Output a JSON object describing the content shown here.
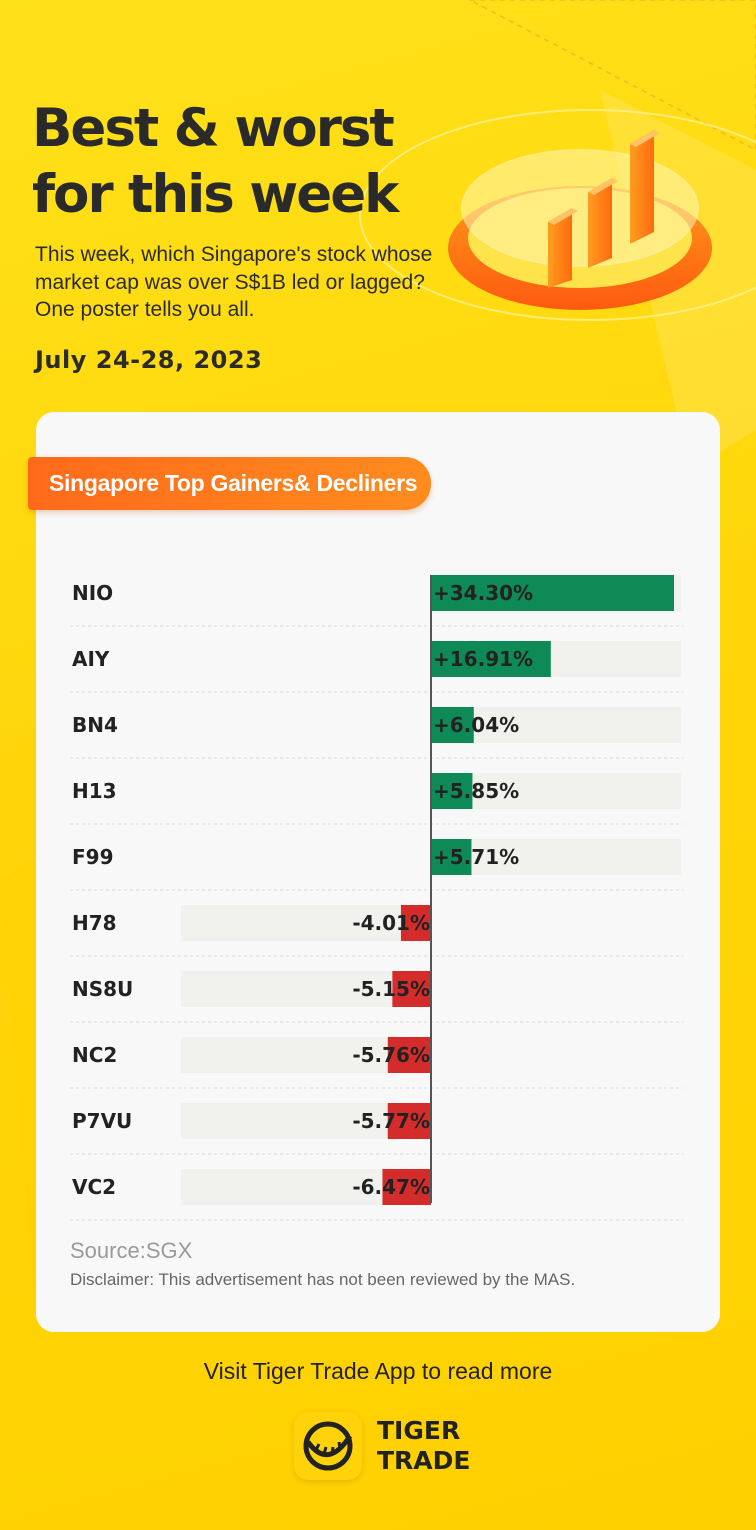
{
  "header": {
    "title_line1": "Best & worst",
    "title_line2": "for this week",
    "intro": "This week, which Singapore's stock whose market cap was over S$1B led or lagged? One poster tells you all.",
    "date": "July 24-28, 2023"
  },
  "card": {
    "pill_label": "Singapore Top Gainers& Decliners",
    "source": "Source:SGX",
    "disclaimer": "Disclaimer: This advertisement has not been reviewed by the MAS."
  },
  "footer": {
    "cta": "Visit Tiger Trade App to read more",
    "brand_line1": "TIGER",
    "brand_line2": "TRADE",
    "logo_icon": "tiger-logo-icon"
  },
  "colors": {
    "gain": "#0e8a57",
    "loss": "#d42b2b",
    "track": "#f1f1ee",
    "accent": "#ff7a1a",
    "background": "#ffd90f"
  },
  "chart_data": {
    "type": "bar",
    "orientation": "horizontal-diverging",
    "title": "Singapore Top Gainers& Decliners",
    "categories": [
      "NIO",
      "AIY",
      "BN4",
      "H13",
      "F99",
      "H78",
      "NS8U",
      "NC2",
      "P7VU",
      "VC2"
    ],
    "values": [
      34.3,
      16.91,
      6.04,
      5.85,
      5.71,
      -4.01,
      -5.15,
      -5.76,
      -5.77,
      -6.47
    ],
    "labels": [
      "+34.30%",
      "+16.91%",
      "+6.04%",
      "+5.85%",
      "+5.71%",
      "-4.01%",
      "-5.15%",
      "-5.76%",
      "-5.77%",
      "-6.47%"
    ],
    "unit": "%",
    "legend": "none",
    "grid": false
  }
}
